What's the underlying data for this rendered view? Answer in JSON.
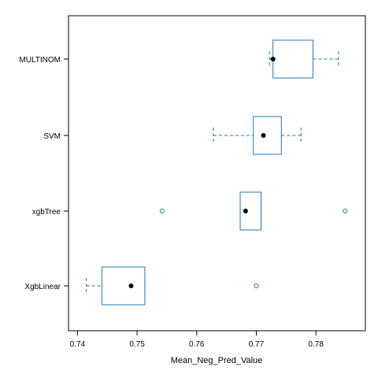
{
  "chart_data": {
    "type": "boxplot",
    "orientation": "horizontal",
    "title": "",
    "xlabel": "Mean_Neg_Pred_Value",
    "ylabel": "",
    "xlim": [
      0.7385,
      0.7883
    ],
    "x_ticks": [
      0.74,
      0.75,
      0.76,
      0.77,
      0.78
    ],
    "x_tick_labels": [
      "0.74",
      "0.75",
      "0.76",
      "0.77",
      "0.78"
    ],
    "categories": [
      "MULTINOM",
      "SVM",
      "xgbTree",
      "XgbLinear"
    ],
    "boxes": [
      {
        "category": "MULTINOM",
        "whisker_low": 0.7722,
        "q1": 0.7728,
        "median": 0.7728,
        "mean": 0.7728,
        "q3": 0.7795,
        "whisker_high": 0.7838,
        "outliers": []
      },
      {
        "category": "SVM",
        "whisker_low": 0.7628,
        "q1": 0.7695,
        "median": 0.7712,
        "mean": 0.7712,
        "q3": 0.7742,
        "whisker_high": 0.7775,
        "outliers": []
      },
      {
        "category": "xgbTree",
        "whisker_low": 0.7673,
        "q1": 0.7673,
        "median": 0.7682,
        "mean": 0.7682,
        "q3": 0.7708,
        "whisker_high": 0.7708,
        "outliers": [
          0.7542,
          0.7849
        ]
      },
      {
        "category": "XgbLinear",
        "whisker_low": 0.7415,
        "q1": 0.7441,
        "median": 0.749,
        "mean": 0.749,
        "q3": 0.7513,
        "whisker_high": 0.7513,
        "outliers": [
          0.77
        ]
      }
    ],
    "box_color": "#1F78B4",
    "mean_marker_color": "#000000",
    "grid": false,
    "legend": "none"
  }
}
